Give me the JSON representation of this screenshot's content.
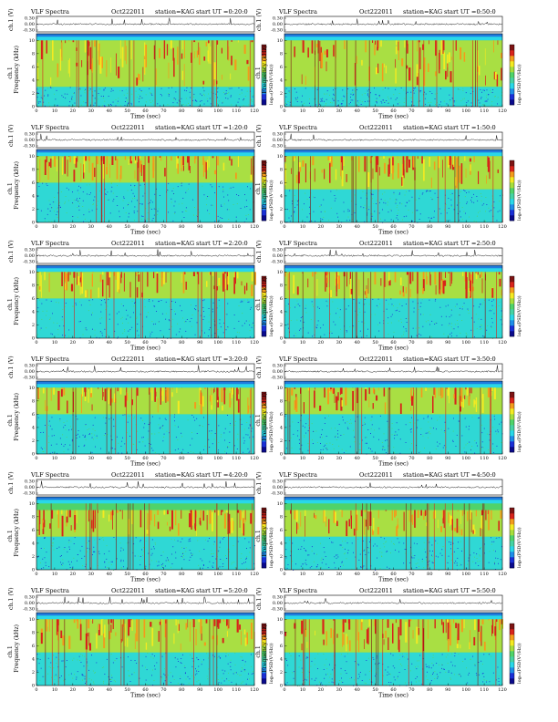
{
  "page": {
    "header_prefix": "VLF Spectra",
    "date": "Oct222011",
    "station": "station=KAG",
    "ut_prefix": "start  UT =",
    "x_label": "Time  (sec)",
    "y_label_top": "ch.1 (V)",
    "y_label_spec_ch": "ch.1",
    "y_label_spec_freq": "Frequency  (kHz)",
    "colorbar_label": "log₁₀(PSD(V²/Hz))"
  },
  "colors": {
    "background_blue": "#1a2fd6",
    "low_cyan": "#29d8e8",
    "mid_green": "#4fd36a",
    "yellow": "#f4ea22",
    "orange": "#f39b1c",
    "red": "#d8231b",
    "dark_red": "#7d1313",
    "colorbar": [
      "#0a0a8c",
      "#1a2fd6",
      "#1f8de8",
      "#29d8e8",
      "#45d3a4",
      "#4fd36a",
      "#a6de3c",
      "#f4ea22",
      "#f39b1c",
      "#d8231b",
      "#7d1313"
    ]
  },
  "chart_data": [
    {
      "type": "heatmap",
      "title": "VLF Spectra   Oct222011   station=KAG   start UT =0:20:0",
      "start_ut": "0:20:0",
      "x": {
        "label": "Time (sec)",
        "range": [
          0,
          120
        ],
        "ticks": [
          0,
          10,
          20,
          30,
          40,
          50,
          60,
          70,
          80,
          90,
          100,
          110,
          120
        ]
      },
      "y": {
        "label": "Frequency (kHz)",
        "range": [
          0,
          11
        ],
        "ticks": [
          0,
          2,
          4,
          6,
          8,
          10
        ],
        "top_value": 11
      },
      "waveform": {
        "label": "ch.1 (V)",
        "ticks": [
          "0.30",
          "0.00",
          "-0.30"
        ]
      },
      "colorbar": {
        "label": "log10(PSD(V^2/Hz))"
      },
      "dominant_band_khz": [
        3,
        10
      ],
      "background_band_khz": [
        10,
        11
      ]
    },
    {
      "type": "heatmap",
      "title": "VLF Spectra   Oct222011   station=KAG   start UT =0:50:0",
      "start_ut": "0:50:0",
      "x": {
        "label": "Time (sec)",
        "range": [
          0,
          120
        ],
        "ticks": [
          0,
          10,
          20,
          30,
          40,
          50,
          60,
          70,
          80,
          90,
          100,
          110,
          120
        ]
      },
      "y": {
        "label": "Frequency (kHz)",
        "range": [
          0,
          11
        ],
        "ticks": [
          0,
          2,
          4,
          6,
          8,
          10
        ],
        "top_value": 11
      },
      "waveform": {
        "label": "ch.1 (V)",
        "ticks": [
          "0.30",
          "0.00",
          "-0.30"
        ]
      },
      "colorbar": {
        "label": "log10(PSD(V^2/Hz))"
      },
      "dominant_band_khz": [
        3,
        10
      ],
      "background_band_khz": [
        10,
        11
      ]
    },
    {
      "type": "heatmap",
      "title": "VLF Spectra   Oct222011   station=KAG   start UT =1:20:0",
      "start_ut": "1:20:0",
      "x": {
        "label": "Time (sec)",
        "range": [
          0,
          120
        ],
        "ticks": [
          0,
          10,
          20,
          30,
          40,
          50,
          60,
          70,
          80,
          90,
          100,
          110,
          120
        ]
      },
      "y": {
        "label": "Frequency (kHz)",
        "range": [
          0,
          11
        ],
        "ticks": [
          0,
          2,
          4,
          6,
          8,
          10
        ],
        "top_value": 11
      },
      "waveform": {
        "label": "ch.1 (V)",
        "ticks": [
          "0.30",
          "0.00",
          "-0.30"
        ]
      },
      "colorbar": {
        "label": "log10(PSD(V^2/Hz))"
      },
      "dominant_band_khz": [
        6,
        10
      ],
      "background_band_khz": [
        10,
        11
      ]
    },
    {
      "type": "heatmap",
      "title": "VLF Spectra   Oct222011   station=KAG   start UT =1:50:0",
      "start_ut": "1:50:0",
      "x": {
        "label": "Time (sec)",
        "range": [
          0,
          120
        ],
        "ticks": [
          0,
          10,
          20,
          30,
          40,
          50,
          60,
          70,
          80,
          90,
          100,
          110,
          120
        ]
      },
      "y": {
        "label": "Frequency (kHz)",
        "range": [
          0,
          11
        ],
        "ticks": [
          0,
          2,
          4,
          6,
          8,
          10
        ],
        "top_value": 11
      },
      "waveform": {
        "label": "ch.1 (V)",
        "ticks": [
          "0.30",
          "0.00",
          "-0.30"
        ]
      },
      "colorbar": {
        "label": "log10(PSD(V^2/Hz))"
      },
      "dominant_band_khz": [
        5,
        10
      ],
      "background_band_khz": [
        10,
        11
      ]
    },
    {
      "type": "heatmap",
      "title": "VLF Spectra   Oct222011   station=KAG   start UT =2:20:0",
      "start_ut": "2:20:0",
      "x": {
        "label": "Time (sec)",
        "range": [
          0,
          120
        ],
        "ticks": [
          0,
          10,
          20,
          30,
          40,
          50,
          60,
          70,
          80,
          90,
          100,
          110,
          120
        ]
      },
      "y": {
        "label": "Frequency (kHz)",
        "range": [
          0,
          11
        ],
        "ticks": [
          0,
          2,
          4,
          6,
          8,
          10
        ],
        "top_value": 11
      },
      "waveform": {
        "label": "ch.1 (V)",
        "ticks": [
          "0.30",
          "0.00",
          "-0.30"
        ]
      },
      "colorbar": {
        "label": "log10(PSD(V^2/Hz))"
      },
      "dominant_band_khz": [
        6,
        10
      ],
      "background_band_khz": [
        10,
        11
      ]
    },
    {
      "type": "heatmap",
      "title": "VLF Spectra   Oct222011   station=KAG   start UT =2:50:0",
      "start_ut": "2:50:0",
      "x": {
        "label": "Time (sec)",
        "range": [
          0,
          120
        ],
        "ticks": [
          0,
          10,
          20,
          30,
          40,
          50,
          60,
          70,
          80,
          90,
          100,
          110,
          120
        ]
      },
      "y": {
        "label": "Frequency (kHz)",
        "range": [
          0,
          11
        ],
        "ticks": [
          0,
          2,
          4,
          6,
          8,
          10
        ],
        "top_value": 11
      },
      "waveform": {
        "label": "ch.1 (V)",
        "ticks": [
          "0.30",
          "0.00",
          "-0.30"
        ]
      },
      "colorbar": {
        "label": "log10(PSD(V^2/Hz))"
      },
      "dominant_band_khz": [
        6,
        10
      ],
      "background_band_khz": [
        10,
        11
      ]
    },
    {
      "type": "heatmap",
      "title": "VLF Spectra   Oct222011   station=KAG   start UT =3:20:0",
      "start_ut": "3:20:0",
      "x": {
        "label": "Time (sec)",
        "range": [
          0,
          120
        ],
        "ticks": [
          0,
          10,
          20,
          30,
          40,
          50,
          60,
          70,
          80,
          90,
          100,
          110,
          120
        ]
      },
      "y": {
        "label": "Frequency (kHz)",
        "range": [
          0,
          11
        ],
        "ticks": [
          0,
          2,
          4,
          6,
          8,
          10
        ],
        "top_value": 11
      },
      "waveform": {
        "label": "ch.1 (V)",
        "ticks": [
          "0.30",
          "0.00",
          "-0.30"
        ]
      },
      "colorbar": {
        "label": "log10(PSD(V^2/Hz))"
      },
      "dominant_band_khz": [
        6,
        10
      ],
      "background_band_khz": [
        10,
        11
      ]
    },
    {
      "type": "heatmap",
      "title": "VLF Spectra   Oct222011   station=KAG   start UT =3:50:0",
      "start_ut": "3:50:0",
      "x": {
        "label": "Time (sec)",
        "range": [
          0,
          120
        ],
        "ticks": [
          0,
          10,
          20,
          30,
          40,
          50,
          60,
          70,
          80,
          90,
          100,
          110,
          120
        ]
      },
      "y": {
        "label": "Frequency (kHz)",
        "range": [
          0,
          11
        ],
        "ticks": [
          0,
          2,
          4,
          6,
          8,
          10
        ],
        "top_value": 11
      },
      "waveform": {
        "label": "ch.1 (V)",
        "ticks": [
          "0.30",
          "0.00",
          "-0.30"
        ]
      },
      "colorbar": {
        "label": "log10(PSD(V^2/Hz))"
      },
      "dominant_band_khz": [
        6,
        10
      ],
      "background_band_khz": [
        10,
        11
      ]
    },
    {
      "type": "heatmap",
      "title": "VLF Spectra   Oct222011   station=KAG   start UT =4:20:0",
      "start_ut": "4:20:0",
      "x": {
        "label": "Time (sec)",
        "range": [
          0,
          120
        ],
        "ticks": [
          0,
          10,
          20,
          30,
          40,
          50,
          60,
          70,
          80,
          90,
          100,
          110,
          120
        ]
      },
      "y": {
        "label": "Frequency (kHz)",
        "range": [
          0,
          11
        ],
        "ticks": [
          0,
          2,
          4,
          6,
          8,
          10
        ],
        "top_value": 11
      },
      "waveform": {
        "label": "ch.1 (V)",
        "ticks": [
          "0.30",
          "0.00",
          "-0.30"
        ]
      },
      "colorbar": {
        "label": "log10(PSD(V^2/Hz))"
      },
      "dominant_band_khz": [
        5,
        9
      ],
      "background_band_khz": [
        10,
        11
      ]
    },
    {
      "type": "heatmap",
      "title": "VLF Spectra   Oct222011   station=KAG   start UT =4:50:0",
      "start_ut": "4:50:0",
      "x": {
        "label": "Time (sec)",
        "range": [
          0,
          120
        ],
        "ticks": [
          0,
          10,
          20,
          30,
          40,
          50,
          60,
          70,
          80,
          90,
          100,
          110,
          120
        ]
      },
      "y": {
        "label": "Frequency (kHz)",
        "range": [
          0,
          11
        ],
        "ticks": [
          0,
          2,
          4,
          6,
          8,
          10
        ],
        "top_value": 11
      },
      "waveform": {
        "label": "ch.1 (V)",
        "ticks": [
          "0.30",
          "0.00",
          "-0.30"
        ]
      },
      "colorbar": {
        "label": "log10(PSD(V^2/Hz))"
      },
      "dominant_band_khz": [
        5,
        9
      ],
      "background_band_khz": [
        10,
        11
      ]
    },
    {
      "type": "heatmap",
      "title": "VLF Spectra   Oct222011   station=KAG   start UT =5:20:0",
      "start_ut": "5:20:0",
      "x": {
        "label": "Time (sec)",
        "range": [
          0,
          120
        ],
        "ticks": [
          0,
          10,
          20,
          30,
          40,
          50,
          60,
          70,
          80,
          90,
          100,
          110,
          120
        ]
      },
      "y": {
        "label": "Frequency (kHz)",
        "range": [
          0,
          11
        ],
        "ticks": [
          0,
          2,
          4,
          6,
          8,
          10
        ],
        "top_value": 11
      },
      "waveform": {
        "label": "ch.1 (V)",
        "ticks": [
          "0.30",
          "0.00",
          "-0.30"
        ]
      },
      "colorbar": {
        "label": "log10(PSD(V^2/Hz))"
      },
      "dominant_band_khz": [
        5,
        10
      ],
      "background_band_khz": [
        10,
        11
      ]
    },
    {
      "type": "heatmap",
      "title": "VLF Spectra   Oct222011   station=KAG   start UT =5:50:0",
      "start_ut": "5:50:0",
      "x": {
        "label": "Time (sec)",
        "range": [
          0,
          120
        ],
        "ticks": [
          0,
          10,
          20,
          30,
          40,
          50,
          60,
          70,
          80,
          90,
          100,
          110,
          120
        ]
      },
      "y": {
        "label": "Frequency (kHz)",
        "range": [
          0,
          11
        ],
        "ticks": [
          0,
          2,
          4,
          6,
          8,
          10
        ],
        "top_value": 11
      },
      "waveform": {
        "label": "ch.1 (V)",
        "ticks": [
          "0.30",
          "0.00",
          "-0.30"
        ]
      },
      "colorbar": {
        "label": "log10(PSD(V^2/Hz))"
      },
      "dominant_band_khz": [
        5,
        10
      ],
      "background_band_khz": [
        10,
        11
      ]
    }
  ]
}
